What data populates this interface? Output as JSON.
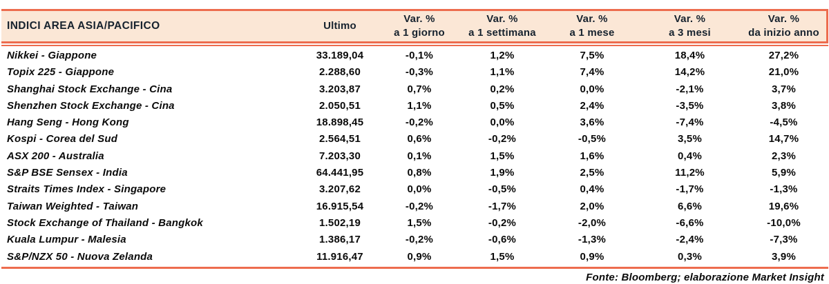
{
  "table": {
    "title": "INDICI AREA ASIA/PACIFICO",
    "columns": [
      {
        "id": "ultimo",
        "line1": "Ultimo",
        "line2": ""
      },
      {
        "id": "d1",
        "line1": "Var. %",
        "line2": "a 1 giorno"
      },
      {
        "id": "w1",
        "line1": "Var. %",
        "line2": "a 1 settimana"
      },
      {
        "id": "m1",
        "line1": "Var. %",
        "line2": "a 1 mese"
      },
      {
        "id": "m3",
        "line1": "Var. %",
        "line2": "a 3 mesi"
      },
      {
        "id": "ytd",
        "line1": "Var. %",
        "line2": "da inizio anno"
      }
    ],
    "rows": [
      {
        "name": "Nikkei - Giappone",
        "ultimo": "33.189,04",
        "d1": "-0,1%",
        "w1": "1,2%",
        "m1": "7,5%",
        "m3": "18,4%",
        "ytd": "27,2%"
      },
      {
        "name": "Topix 225 - Giappone",
        "ultimo": "2.288,60",
        "d1": "-0,3%",
        "w1": "1,1%",
        "m1": "7,4%",
        "m3": "14,2%",
        "ytd": "21,0%"
      },
      {
        "name": "Shanghai Stock Exchange - Cina",
        "ultimo": "3.203,87",
        "d1": "0,7%",
        "w1": "0,2%",
        "m1": "0,0%",
        "m3": "-2,1%",
        "ytd": "3,7%"
      },
      {
        "name": "Shenzhen Stock Exchange - Cina",
        "ultimo": "2.050,51",
        "d1": "1,1%",
        "w1": "0,5%",
        "m1": "2,4%",
        "m3": "-3,5%",
        "ytd": "3,8%"
      },
      {
        "name": "Hang Seng - Hong Kong",
        "ultimo": "18.898,45",
        "d1": "-0,2%",
        "w1": "0,0%",
        "m1": "3,6%",
        "m3": "-7,4%",
        "ytd": "-4,5%"
      },
      {
        "name": "Kospi - Corea del Sud",
        "ultimo": "2.564,51",
        "d1": "0,6%",
        "w1": "-0,2%",
        "m1": "-0,5%",
        "m3": "3,5%",
        "ytd": "14,7%"
      },
      {
        "name": "ASX 200 - Australia",
        "ultimo": "7.203,30",
        "d1": "0,1%",
        "w1": "1,5%",
        "m1": "1,6%",
        "m3": "0,4%",
        "ytd": "2,3%"
      },
      {
        "name": "S&P BSE Sensex - India",
        "ultimo": "64.441,95",
        "d1": "0,8%",
        "w1": "1,9%",
        "m1": "2,5%",
        "m3": "11,2%",
        "ytd": "5,9%"
      },
      {
        "name": "Straits Times Index - Singapore",
        "ultimo": "3.207,62",
        "d1": "0,0%",
        "w1": "-0,5%",
        "m1": "0,4%",
        "m3": "-1,7%",
        "ytd": "-1,3%"
      },
      {
        "name": "Taiwan Weighted - Taiwan",
        "ultimo": "16.915,54",
        "d1": "-0,2%",
        "w1": "-1,7%",
        "m1": "2,0%",
        "m3": "6,6%",
        "ytd": "19,6%"
      },
      {
        "name": "Stock Exchange of Thailand - Bangkok",
        "ultimo": "1.502,19",
        "d1": "1,5%",
        "w1": "-0,2%",
        "m1": "-2,0%",
        "m3": "-6,6%",
        "ytd": "-10,0%"
      },
      {
        "name": "Kuala Lumpur - Malesia",
        "ultimo": "1.386,17",
        "d1": "-0,2%",
        "w1": "-0,6%",
        "m1": "-1,3%",
        "m3": "-2,4%",
        "ytd": "-7,3%"
      },
      {
        "name": "S&P/NZX 50 - Nuova Zelanda",
        "ultimo": "11.916,47",
        "d1": "0,9%",
        "w1": "1,5%",
        "m1": "0,9%",
        "m3": "0,3%",
        "ytd": "3,9%"
      }
    ]
  },
  "footer": {
    "source": "Fonte: Bloomberg; elaborazione Market Insight"
  },
  "colors": {
    "accent_orange": "#ED6C4E",
    "header_bg": "#FBE7D6",
    "header_text": "#16222E",
    "body_text": "#0A0A0A"
  }
}
